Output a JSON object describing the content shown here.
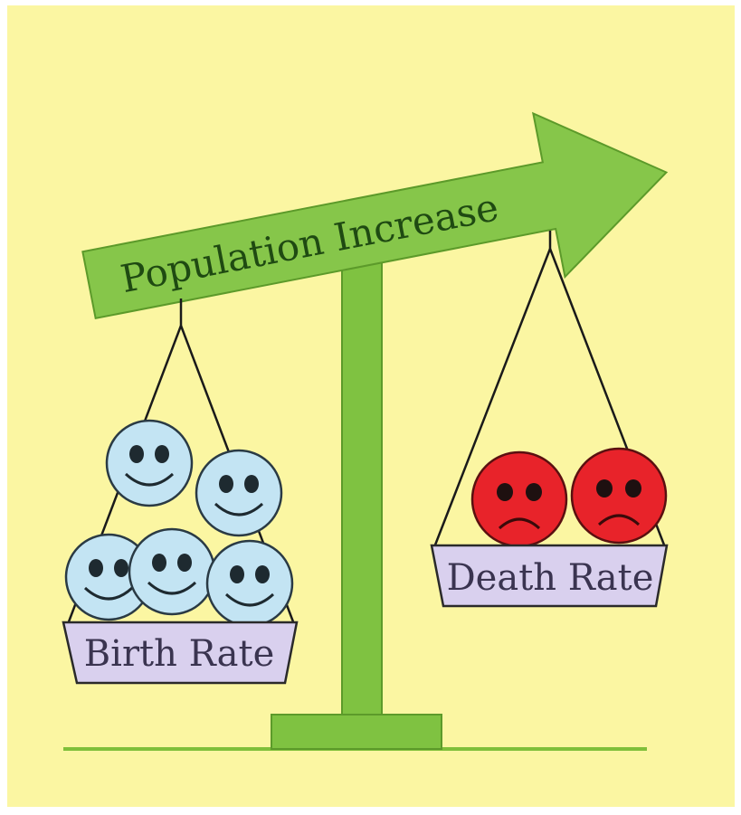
{
  "arrow": {
    "label": "Population Increase"
  },
  "left_pan": {
    "label": "Birth Rate"
  },
  "right_pan": {
    "label": "Death Rate"
  }
}
